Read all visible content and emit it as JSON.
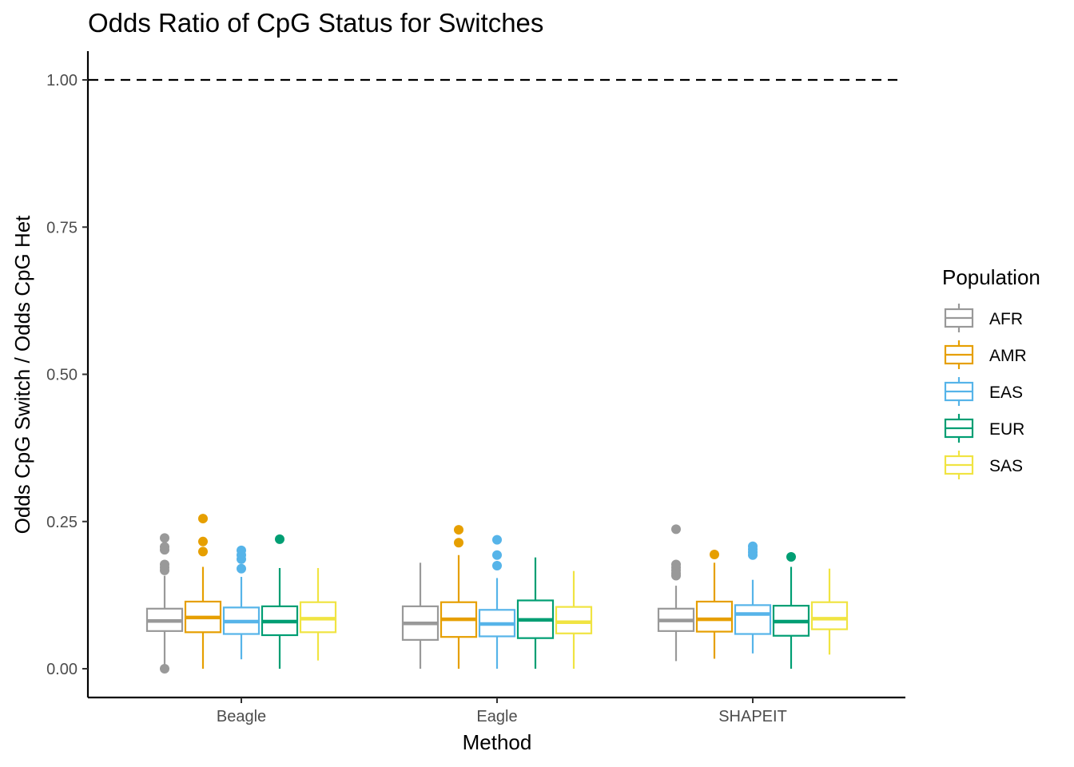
{
  "chart_data": {
    "type": "boxplot",
    "title": "Odds Ratio of CpG Status for Switches",
    "xlabel": "Method",
    "ylabel": "Odds CpG Switch / Odds CpG Het",
    "categories": [
      "Beagle",
      "Eagle",
      "SHAPEIT"
    ],
    "ylim": [
      -0.05,
      1.05
    ],
    "yticks": [
      0.0,
      0.25,
      0.5,
      0.75,
      1.0
    ],
    "ytick_labels": [
      "0.00",
      "0.25",
      "0.50",
      "0.75",
      "1.00"
    ],
    "reference_line": {
      "y": 1.0,
      "style": "dashed",
      "color": "#000000"
    },
    "grid": false,
    "legend": {
      "title": "Population",
      "position": "right"
    },
    "series": [
      {
        "name": "AFR",
        "color": "#999999",
        "boxes": [
          {
            "whisker_low": 0.002,
            "q1": 0.064,
            "median": 0.081,
            "q3": 0.102,
            "whisker_high": 0.158,
            "outliers": [
              0.0,
              0.167,
              0.172,
              0.177,
              0.202,
              0.207,
              0.222
            ]
          },
          {
            "whisker_low": 0.0,
            "q1": 0.049,
            "median": 0.077,
            "q3": 0.106,
            "whisker_high": 0.18,
            "outliers": []
          },
          {
            "whisker_low": 0.013,
            "q1": 0.064,
            "median": 0.082,
            "q3": 0.102,
            "whisker_high": 0.141,
            "outliers": [
              0.158,
              0.162,
              0.167,
              0.172,
              0.177,
              0.237
            ]
          }
        ]
      },
      {
        "name": "AMR",
        "color": "#E69F00",
        "boxes": [
          {
            "whisker_low": 0.0,
            "q1": 0.062,
            "median": 0.087,
            "q3": 0.114,
            "whisker_high": 0.173,
            "outliers": [
              0.199,
              0.216,
              0.255
            ]
          },
          {
            "whisker_low": 0.0,
            "q1": 0.054,
            "median": 0.084,
            "q3": 0.113,
            "whisker_high": 0.193,
            "outliers": [
              0.214,
              0.236
            ]
          },
          {
            "whisker_low": 0.017,
            "q1": 0.063,
            "median": 0.084,
            "q3": 0.114,
            "whisker_high": 0.18,
            "outliers": [
              0.194
            ]
          }
        ]
      },
      {
        "name": "EAS",
        "color": "#56B4E9",
        "boxes": [
          {
            "whisker_low": 0.016,
            "q1": 0.059,
            "median": 0.08,
            "q3": 0.104,
            "whisker_high": 0.156,
            "outliers": [
              0.17,
              0.186,
              0.193,
              0.201
            ]
          },
          {
            "whisker_low": 0.0,
            "q1": 0.055,
            "median": 0.076,
            "q3": 0.1,
            "whisker_high": 0.154,
            "outliers": [
              0.175,
              0.193,
              0.219
            ]
          },
          {
            "whisker_low": 0.026,
            "q1": 0.059,
            "median": 0.093,
            "q3": 0.108,
            "whisker_high": 0.151,
            "outliers": [
              0.193,
              0.198,
              0.203,
              0.208
            ]
          }
        ]
      },
      {
        "name": "EUR",
        "color": "#009E73",
        "boxes": [
          {
            "whisker_low": 0.0,
            "q1": 0.057,
            "median": 0.08,
            "q3": 0.106,
            "whisker_high": 0.171,
            "outliers": [
              0.22
            ]
          },
          {
            "whisker_low": 0.0,
            "q1": 0.052,
            "median": 0.083,
            "q3": 0.116,
            "whisker_high": 0.189,
            "outliers": []
          },
          {
            "whisker_low": 0.0,
            "q1": 0.056,
            "median": 0.08,
            "q3": 0.107,
            "whisker_high": 0.173,
            "outliers": [
              0.19
            ]
          }
        ]
      },
      {
        "name": "SAS",
        "color": "#F0E442",
        "boxes": [
          {
            "whisker_low": 0.014,
            "q1": 0.062,
            "median": 0.085,
            "q3": 0.113,
            "whisker_high": 0.171,
            "outliers": []
          },
          {
            "whisker_low": 0.0,
            "q1": 0.06,
            "median": 0.079,
            "q3": 0.105,
            "whisker_high": 0.166,
            "outliers": []
          },
          {
            "whisker_low": 0.024,
            "q1": 0.067,
            "median": 0.085,
            "q3": 0.113,
            "whisker_high": 0.17,
            "outliers": []
          }
        ]
      }
    ]
  }
}
